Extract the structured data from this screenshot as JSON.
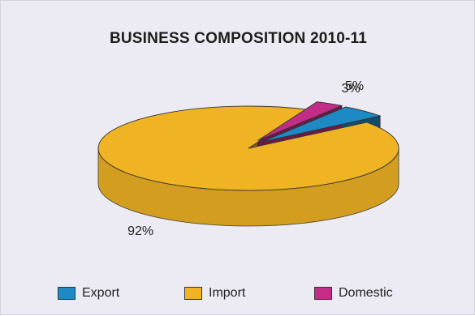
{
  "chart_data": {
    "type": "pie",
    "title": "BUSINESS COMPOSITION 2010-11",
    "categories": [
      "Export",
      "Import",
      "Domestic"
    ],
    "values": [
      5,
      92,
      3
    ],
    "value_labels": [
      "5%",
      "92%",
      "3%"
    ],
    "colors": {
      "Export": "#1d8ac6",
      "Import": "#f0b323",
      "Domestic": "#c42d87"
    },
    "style": "3d-exploded",
    "legend": "bottom"
  }
}
